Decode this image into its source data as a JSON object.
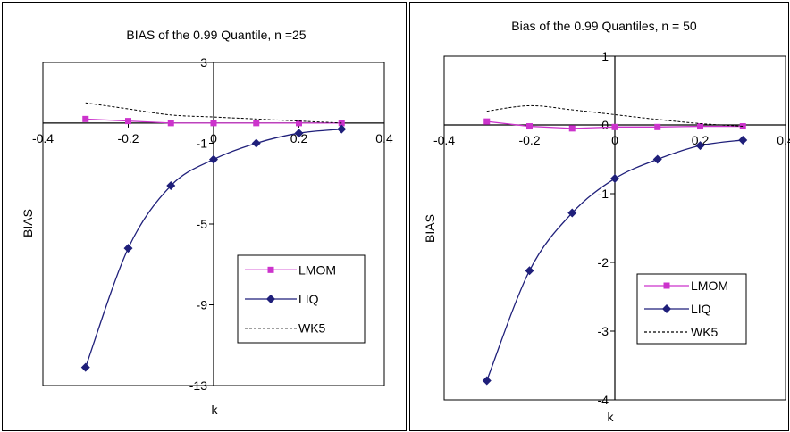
{
  "chart_data": [
    {
      "type": "line",
      "title": "BIAS of the 0.99 Quantile, n =25",
      "xlabel": "k",
      "ylabel": "BIAS",
      "xlim": [
        -0.4,
        0.4
      ],
      "ylim": [
        -13,
        3
      ],
      "x_ticks": [
        -0.4,
        -0.2,
        0,
        0.2,
        0.4
      ],
      "x_tick_labels": [
        "-0.4",
        "-0.2",
        "0",
        "0.2",
        "0.4"
      ],
      "y_ticks": [
        3,
        -1,
        -5,
        -9,
        -13
      ],
      "y_tick_labels": [
        "3",
        "-1",
        "-5",
        "-9",
        "-13"
      ],
      "x": [
        -0.3,
        -0.2,
        -0.1,
        0,
        0.1,
        0.2,
        0.3
      ],
      "series": [
        {
          "name": "LMOM",
          "color": "#cc33cc",
          "marker": "square",
          "values": [
            0.2,
            0.1,
            0.0,
            0.0,
            0.0,
            0.0,
            0.0
          ]
        },
        {
          "name": "LIQ",
          "color": "#1f1f7a",
          "marker": "diamond",
          "values": [
            -12.1,
            -6.2,
            -3.1,
            -1.8,
            -1.0,
            -0.5,
            -0.3
          ]
        },
        {
          "name": "WK5",
          "color": "#000000",
          "marker": "none",
          "dashed": true,
          "values": [
            1.0,
            0.7,
            0.4,
            0.3,
            0.2,
            0.1,
            0.0
          ]
        }
      ],
      "legend": [
        "LMOM",
        "LIQ",
        "WK5"
      ],
      "legend_position": "bottom-right inside",
      "grid": false
    },
    {
      "type": "line",
      "title": "Bias of the 0.99 Quantiles, n = 50",
      "xlabel": "k",
      "ylabel": "BIAS",
      "xlim": [
        -0.4,
        0.4
      ],
      "ylim": [
        -4,
        1
      ],
      "x_ticks": [
        -0.4,
        -0.2,
        0,
        0.2,
        0.4
      ],
      "x_tick_labels": [
        "-0.4",
        "-0.2",
        "0",
        "0.2",
        "0.4"
      ],
      "y_ticks": [
        1,
        0,
        -1,
        -2,
        -3,
        -4
      ],
      "y_tick_labels": [
        "1",
        "0",
        "-1",
        "-2",
        "-3",
        "-4"
      ],
      "x": [
        -0.3,
        -0.2,
        -0.1,
        0,
        0.1,
        0.2,
        0.3
      ],
      "series": [
        {
          "name": "LMOM",
          "color": "#cc33cc",
          "marker": "square",
          "values": [
            0.05,
            -0.02,
            -0.05,
            -0.03,
            -0.03,
            -0.02,
            -0.02
          ]
        },
        {
          "name": "LIQ",
          "color": "#1f1f7a",
          "marker": "diamond",
          "values": [
            -3.72,
            -2.12,
            -1.28,
            -0.78,
            -0.5,
            -0.3,
            -0.22
          ]
        },
        {
          "name": "WK5",
          "color": "#000000",
          "marker": "none",
          "dashed": true,
          "values": [
            0.2,
            0.28,
            0.22,
            0.15,
            0.08,
            0.02,
            -0.02
          ]
        }
      ],
      "legend": [
        "LMOM",
        "LIQ",
        "WK5"
      ],
      "legend_position": "bottom-right inside",
      "grid": false
    }
  ]
}
